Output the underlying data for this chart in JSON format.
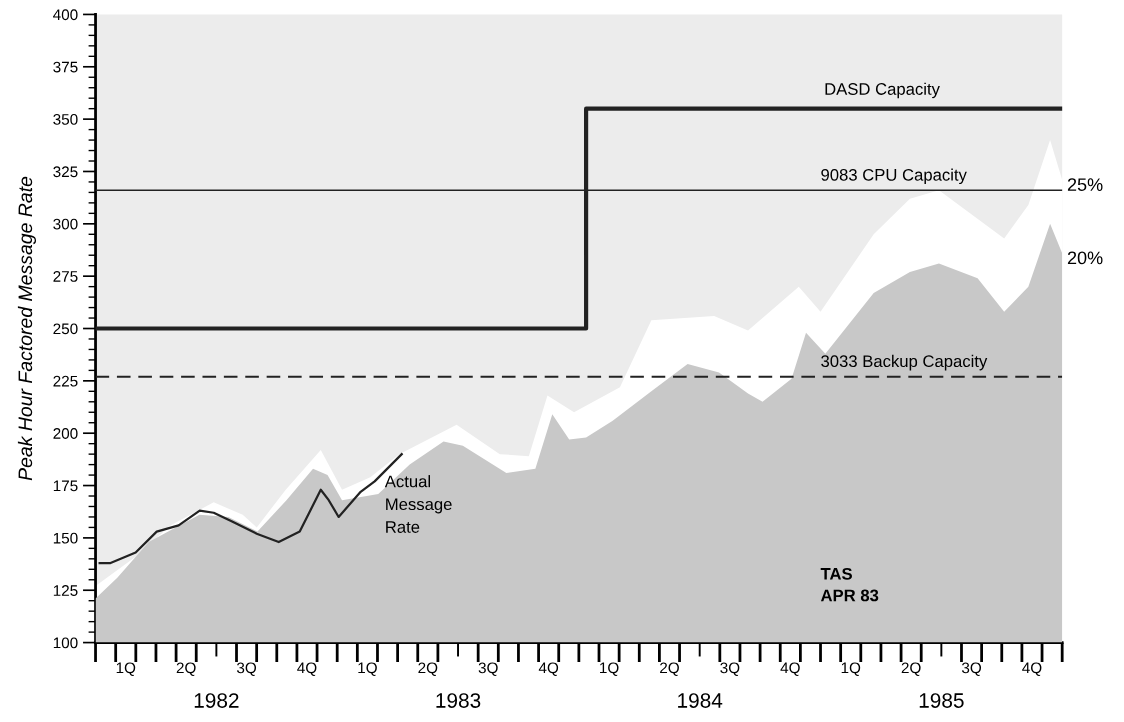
{
  "chart_data": {
    "type": "area",
    "ylabel": "Peak Hour Factored Message Rate",
    "xlim": [
      1982,
      1986
    ],
    "ylim": [
      100,
      400
    ],
    "yticks": [
      100,
      125,
      150,
      175,
      200,
      225,
      250,
      275,
      300,
      325,
      350,
      375,
      400
    ],
    "xticks": [
      {
        "value": 1982.5,
        "label": "1982"
      },
      {
        "value": 1983.5,
        "label": "1983"
      },
      {
        "value": 1984.5,
        "label": "1984"
      },
      {
        "value": 1985.5,
        "label": "1985"
      }
    ],
    "series": [
      {
        "name": "25%",
        "color": "#ffffff",
        "x": [
          1982.0,
          1982.166,
          1982.311,
          1982.489,
          1982.609,
          1982.667,
          1982.787,
          1982.932,
          1983.02,
          1983.137,
          1983.257,
          1983.494,
          1983.673,
          1983.793,
          1983.87,
          1983.98,
          1984.17,
          1984.3,
          1984.56,
          1984.7,
          1984.91,
          1985.0,
          1985.22,
          1985.37,
          1985.49,
          1985.76,
          1985.86,
          1985.95,
          1986.0
        ],
        "values": [
          127,
          141,
          156,
          167,
          161,
          155,
          173,
          192,
          173,
          179,
          190,
          204,
          190,
          189,
          218,
          210,
          222,
          254,
          256,
          249,
          270,
          258,
          295,
          312,
          316,
          293,
          309,
          340,
          321
        ]
      },
      {
        "name": "20%",
        "color": "#c8c8c8",
        "x": [
          1982.0,
          1982.09,
          1982.22,
          1982.43,
          1982.55,
          1982.67,
          1982.79,
          1982.9,
          1982.96,
          1983.02,
          1983.17,
          1983.3,
          1983.44,
          1983.52,
          1983.7,
          1983.82,
          1983.89,
          1983.96,
          1984.03,
          1984.14,
          1984.3,
          1984.45,
          1984.58,
          1984.7,
          1984.76,
          1984.88,
          1984.94,
          1985.02,
          1985.22,
          1985.37,
          1985.49,
          1985.65,
          1985.76,
          1985.86,
          1985.95,
          1986.0
        ],
        "values": [
          121,
          131,
          148,
          161,
          160,
          153,
          168,
          183,
          180,
          168,
          171,
          185,
          196,
          194,
          181,
          183,
          209,
          197,
          198,
          206,
          220,
          233,
          229,
          219,
          215,
          226,
          248,
          238,
          267,
          277,
          281,
          274,
          258,
          270,
          300,
          286
        ]
      },
      {
        "name": "DASD Capacity",
        "type": "step",
        "color": "#222222",
        "x": [
          1982.0,
          1984.03,
          1986.0
        ],
        "values": [
          250,
          355,
          355
        ]
      },
      {
        "name": "Actual Message Rate",
        "type": "line",
        "color": "#222222",
        "x": [
          1982.017,
          1982.062,
          1982.166,
          1982.253,
          1982.344,
          1982.431,
          1982.489,
          1982.563,
          1982.667,
          1982.758,
          1982.845,
          1982.932,
          1982.965,
          1983.006,
          1983.097,
          1983.155,
          1983.267
        ],
        "values": [
          138,
          138,
          143,
          153,
          156,
          163,
          162,
          158,
          152,
          148,
          153,
          173,
          168,
          160,
          172,
          177,
          190
        ]
      }
    ],
    "ref_lines": [
      {
        "axis": "y",
        "value": 316,
        "label": "9083 CPU Capacity",
        "color": "#222222",
        "line_style": "solid"
      },
      {
        "axis": "y",
        "value": 227,
        "label": "3033 Backup Capacity",
        "color": "#222222",
        "line_style": "dashed"
      }
    ],
    "annotations": [
      "1Q",
      "2Q",
      "3Q",
      "4Q",
      "1Q",
      "2Q",
      "3Q",
      "4Q",
      "1Q",
      "2Q",
      "3Q",
      "4Q",
      "1Q",
      "2Q",
      "3Q",
      "4Q",
      "TAS\nAPR 83"
    ],
    "legend": false,
    "grid": false
  }
}
